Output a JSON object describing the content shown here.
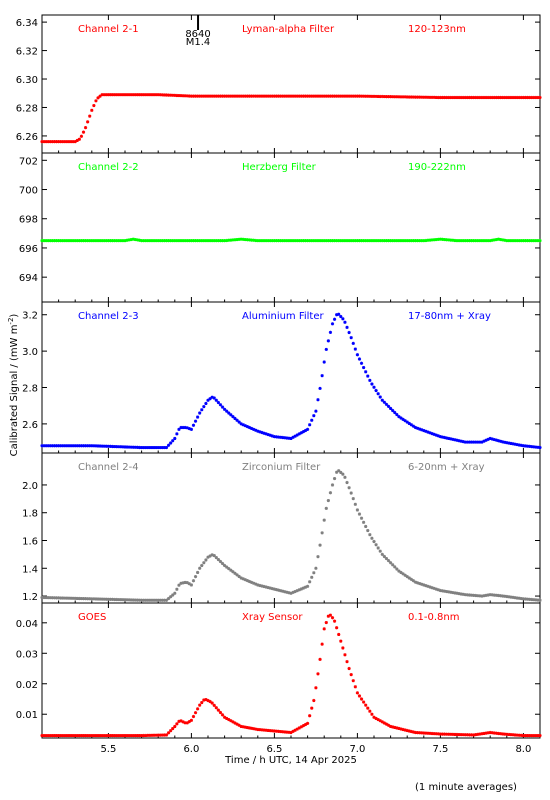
{
  "chart_data": {
    "type": "scatter",
    "x_axis": {
      "label": "Time / h UTC, 14 Apr 2025",
      "range": [
        5.1,
        8.1
      ],
      "ticks": [
        5.5,
        6.0,
        6.5,
        7.0,
        7.5,
        8.0
      ],
      "tick_labels": [
        "5.5",
        "6.0",
        "6.5",
        "7.0",
        "7.5",
        "8.0"
      ]
    },
    "y_axis_label_main": "Calibrated Signal / (mW m",
    "y_axis_label_sup": "-2",
    "y_axis_label_end": ")",
    "event_marker": {
      "x": 6.04,
      "label1": "8640",
      "label2": "M1.4"
    },
    "panels": [
      {
        "channel": "Channel 2-1",
        "filter": "Lyman-alpha Filter",
        "band": "120-123nm",
        "color": "#ff0000",
        "ylim": [
          6.248,
          6.345
        ],
        "yticks": [
          6.26,
          6.28,
          6.3,
          6.32,
          6.34
        ],
        "ytick_labels": [
          "6.26",
          "6.28",
          "6.30",
          "6.32",
          "6.34"
        ],
        "points": [
          [
            5.1,
            6.256
          ],
          [
            5.2,
            6.256
          ],
          [
            5.3,
            6.256
          ],
          [
            5.33,
            6.258
          ],
          [
            5.36,
            6.265
          ],
          [
            5.4,
            6.278
          ],
          [
            5.43,
            6.286
          ],
          [
            5.46,
            6.289
          ],
          [
            5.55,
            6.289
          ],
          [
            5.8,
            6.289
          ],
          [
            6.0,
            6.288
          ],
          [
            6.5,
            6.288
          ],
          [
            7.0,
            6.288
          ],
          [
            7.5,
            6.287
          ],
          [
            8.1,
            6.287
          ]
        ]
      },
      {
        "channel": "Channel 2-2",
        "filter": "Herzberg Filter",
        "band": "190-222nm",
        "color": "#00ff00",
        "ylim": [
          692.3,
          702.5
        ],
        "yticks": [
          694,
          696,
          698,
          700,
          702
        ],
        "ytick_labels": [
          "694",
          "696",
          "698",
          "700",
          "702"
        ],
        "points": [
          [
            5.1,
            696.5
          ],
          [
            5.6,
            696.5
          ],
          [
            5.65,
            696.6
          ],
          [
            5.7,
            696.5
          ],
          [
            6.2,
            696.5
          ],
          [
            6.3,
            696.6
          ],
          [
            6.4,
            696.5
          ],
          [
            7.4,
            696.5
          ],
          [
            7.5,
            696.6
          ],
          [
            7.6,
            696.5
          ],
          [
            7.8,
            696.5
          ],
          [
            7.85,
            696.6
          ],
          [
            7.9,
            696.5
          ],
          [
            8.1,
            696.5
          ]
        ]
      },
      {
        "channel": "Channel 2-3",
        "filter": "Aluminium Filter",
        "band": "17-80nm + Xray",
        "color": "#0000ff",
        "ylim": [
          2.44,
          3.27
        ],
        "yticks": [
          2.6,
          2.8,
          3.0,
          3.2
        ],
        "ytick_labels": [
          "2.6",
          "2.8",
          "3.0",
          "3.2"
        ],
        "points": [
          [
            5.1,
            2.48
          ],
          [
            5.4,
            2.48
          ],
          [
            5.7,
            2.47
          ],
          [
            5.85,
            2.47
          ],
          [
            5.9,
            2.52
          ],
          [
            5.93,
            2.58
          ],
          [
            5.97,
            2.58
          ],
          [
            6.0,
            2.57
          ],
          [
            6.05,
            2.66
          ],
          [
            6.1,
            2.73
          ],
          [
            6.13,
            2.75
          ],
          [
            6.2,
            2.68
          ],
          [
            6.3,
            2.6
          ],
          [
            6.4,
            2.56
          ],
          [
            6.5,
            2.53
          ],
          [
            6.6,
            2.52
          ],
          [
            6.7,
            2.57
          ],
          [
            6.75,
            2.67
          ],
          [
            6.78,
            2.82
          ],
          [
            6.81,
            3.0
          ],
          [
            6.85,
            3.15
          ],
          [
            6.88,
            3.21
          ],
          [
            6.92,
            3.17
          ],
          [
            6.96,
            3.08
          ],
          [
            7.0,
            2.98
          ],
          [
            7.08,
            2.83
          ],
          [
            7.15,
            2.73
          ],
          [
            7.25,
            2.64
          ],
          [
            7.35,
            2.58
          ],
          [
            7.5,
            2.53
          ],
          [
            7.65,
            2.5
          ],
          [
            7.75,
            2.5
          ],
          [
            7.8,
            2.52
          ],
          [
            7.88,
            2.5
          ],
          [
            8.0,
            2.48
          ],
          [
            8.1,
            2.47
          ]
        ]
      },
      {
        "channel": "Channel 2-4",
        "filter": "Zirconium Filter",
        "band": "6-20nm + Xray",
        "color": "#808080",
        "ylim": [
          1.15,
          2.23
        ],
        "yticks": [
          1.2,
          1.4,
          1.6,
          1.8,
          2.0
        ],
        "ytick_labels": [
          "1.2",
          "1.4",
          "1.6",
          "1.8",
          "2.0"
        ],
        "points": [
          [
            5.1,
            1.19
          ],
          [
            5.4,
            1.18
          ],
          [
            5.7,
            1.17
          ],
          [
            5.85,
            1.17
          ],
          [
            5.9,
            1.22
          ],
          [
            5.93,
            1.29
          ],
          [
            5.97,
            1.3
          ],
          [
            6.0,
            1.28
          ],
          [
            6.05,
            1.4
          ],
          [
            6.1,
            1.48
          ],
          [
            6.13,
            1.5
          ],
          [
            6.2,
            1.42
          ],
          [
            6.3,
            1.33
          ],
          [
            6.4,
            1.28
          ],
          [
            6.5,
            1.25
          ],
          [
            6.6,
            1.22
          ],
          [
            6.7,
            1.27
          ],
          [
            6.75,
            1.4
          ],
          [
            6.78,
            1.6
          ],
          [
            6.81,
            1.82
          ],
          [
            6.85,
            2.0
          ],
          [
            6.88,
            2.11
          ],
          [
            6.92,
            2.07
          ],
          [
            6.96,
            1.95
          ],
          [
            7.0,
            1.82
          ],
          [
            7.08,
            1.63
          ],
          [
            7.15,
            1.5
          ],
          [
            7.25,
            1.38
          ],
          [
            7.35,
            1.3
          ],
          [
            7.5,
            1.24
          ],
          [
            7.65,
            1.21
          ],
          [
            7.75,
            1.2
          ],
          [
            7.8,
            1.21
          ],
          [
            7.88,
            1.2
          ],
          [
            8.0,
            1.18
          ],
          [
            8.1,
            1.17
          ]
        ]
      },
      {
        "channel": "GOES",
        "filter": "Xray Sensor",
        "band": "0.1-0.8nm",
        "color": "#ff0000",
        "ylim": [
          0.0022,
          0.0465
        ],
        "yticks": [
          0.01,
          0.02,
          0.03,
          0.04
        ],
        "ytick_labels": [
          "0.01",
          "0.02",
          "0.03",
          "0.04"
        ],
        "points": [
          [
            5.1,
            0.003
          ],
          [
            5.4,
            0.003
          ],
          [
            5.7,
            0.003
          ],
          [
            5.85,
            0.0032
          ],
          [
            5.9,
            0.006
          ],
          [
            5.93,
            0.008
          ],
          [
            5.97,
            0.007
          ],
          [
            6.0,
            0.008
          ],
          [
            6.05,
            0.013
          ],
          [
            6.08,
            0.015
          ],
          [
            6.12,
            0.014
          ],
          [
            6.2,
            0.009
          ],
          [
            6.3,
            0.006
          ],
          [
            6.4,
            0.005
          ],
          [
            6.5,
            0.0045
          ],
          [
            6.6,
            0.004
          ],
          [
            6.7,
            0.007
          ],
          [
            6.74,
            0.015
          ],
          [
            6.77,
            0.026
          ],
          [
            6.8,
            0.038
          ],
          [
            6.83,
            0.043
          ],
          [
            6.86,
            0.041
          ],
          [
            6.9,
            0.034
          ],
          [
            6.95,
            0.025
          ],
          [
            7.0,
            0.017
          ],
          [
            7.1,
            0.009
          ],
          [
            7.2,
            0.006
          ],
          [
            7.35,
            0.004
          ],
          [
            7.5,
            0.0035
          ],
          [
            7.7,
            0.0032
          ],
          [
            7.8,
            0.004
          ],
          [
            7.88,
            0.0035
          ],
          [
            8.0,
            0.003
          ],
          [
            8.1,
            0.003
          ]
        ]
      }
    ]
  },
  "footnote": "(1 minute averages)"
}
